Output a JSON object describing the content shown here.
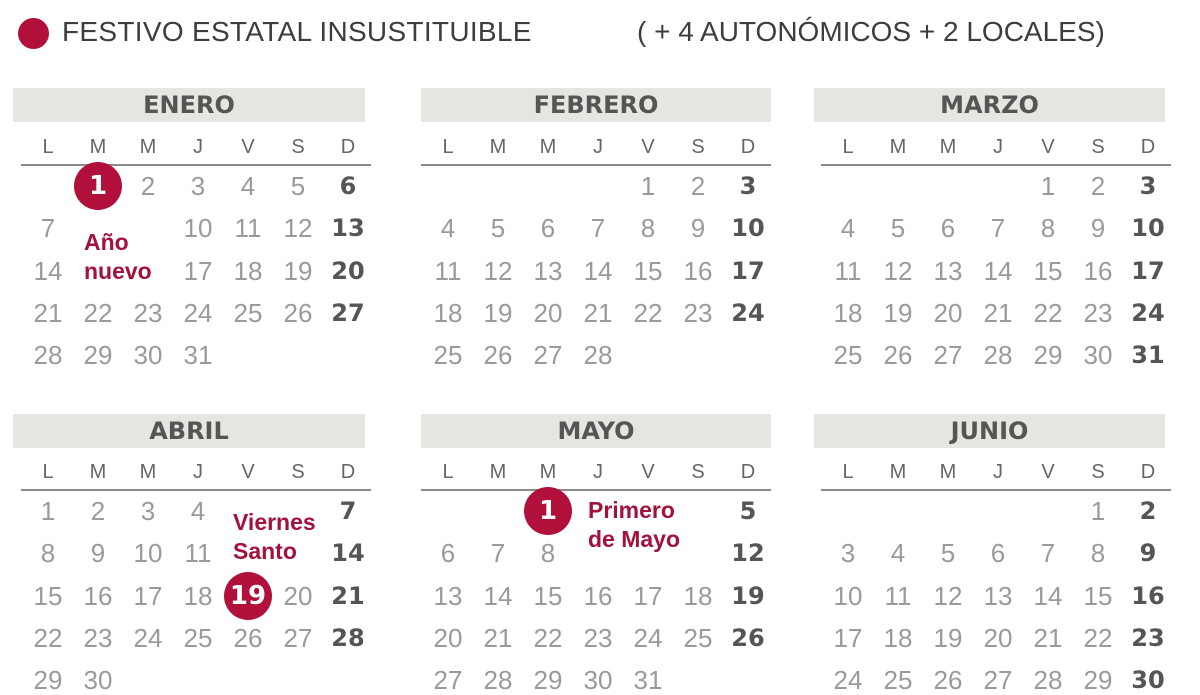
{
  "legend": {
    "label": "FESTIVO ESTATAL INSUSTITUIBLE",
    "extra": "( + 4 AUTONÓMICOS + 2 LOCALES)",
    "color": "#b0103a"
  },
  "weekdays": [
    "L",
    "M",
    "M",
    "J",
    "V",
    "S",
    "D"
  ],
  "months": [
    {
      "name": "ENERO",
      "first_weekday": 1,
      "days": 31
    },
    {
      "name": "FEBRERO",
      "first_weekday": 4,
      "days": 28
    },
    {
      "name": "MARZO",
      "first_weekday": 4,
      "days": 31
    },
    {
      "name": "ABRIL",
      "first_weekday": 0,
      "days": 30
    },
    {
      "name": "MAYO",
      "first_weekday": 2,
      "days": 31
    },
    {
      "name": "JUNIO",
      "first_weekday": 5,
      "days": 30
    }
  ],
  "holidays": [
    {
      "month": 0,
      "day": 1,
      "label": [
        "Año",
        "nuevo"
      ]
    },
    {
      "month": 3,
      "day": 19,
      "label": [
        "Viernes",
        "Santo"
      ]
    },
    {
      "month": 4,
      "day": 1,
      "label": [
        "Primero",
        "de Mayo"
      ]
    }
  ]
}
